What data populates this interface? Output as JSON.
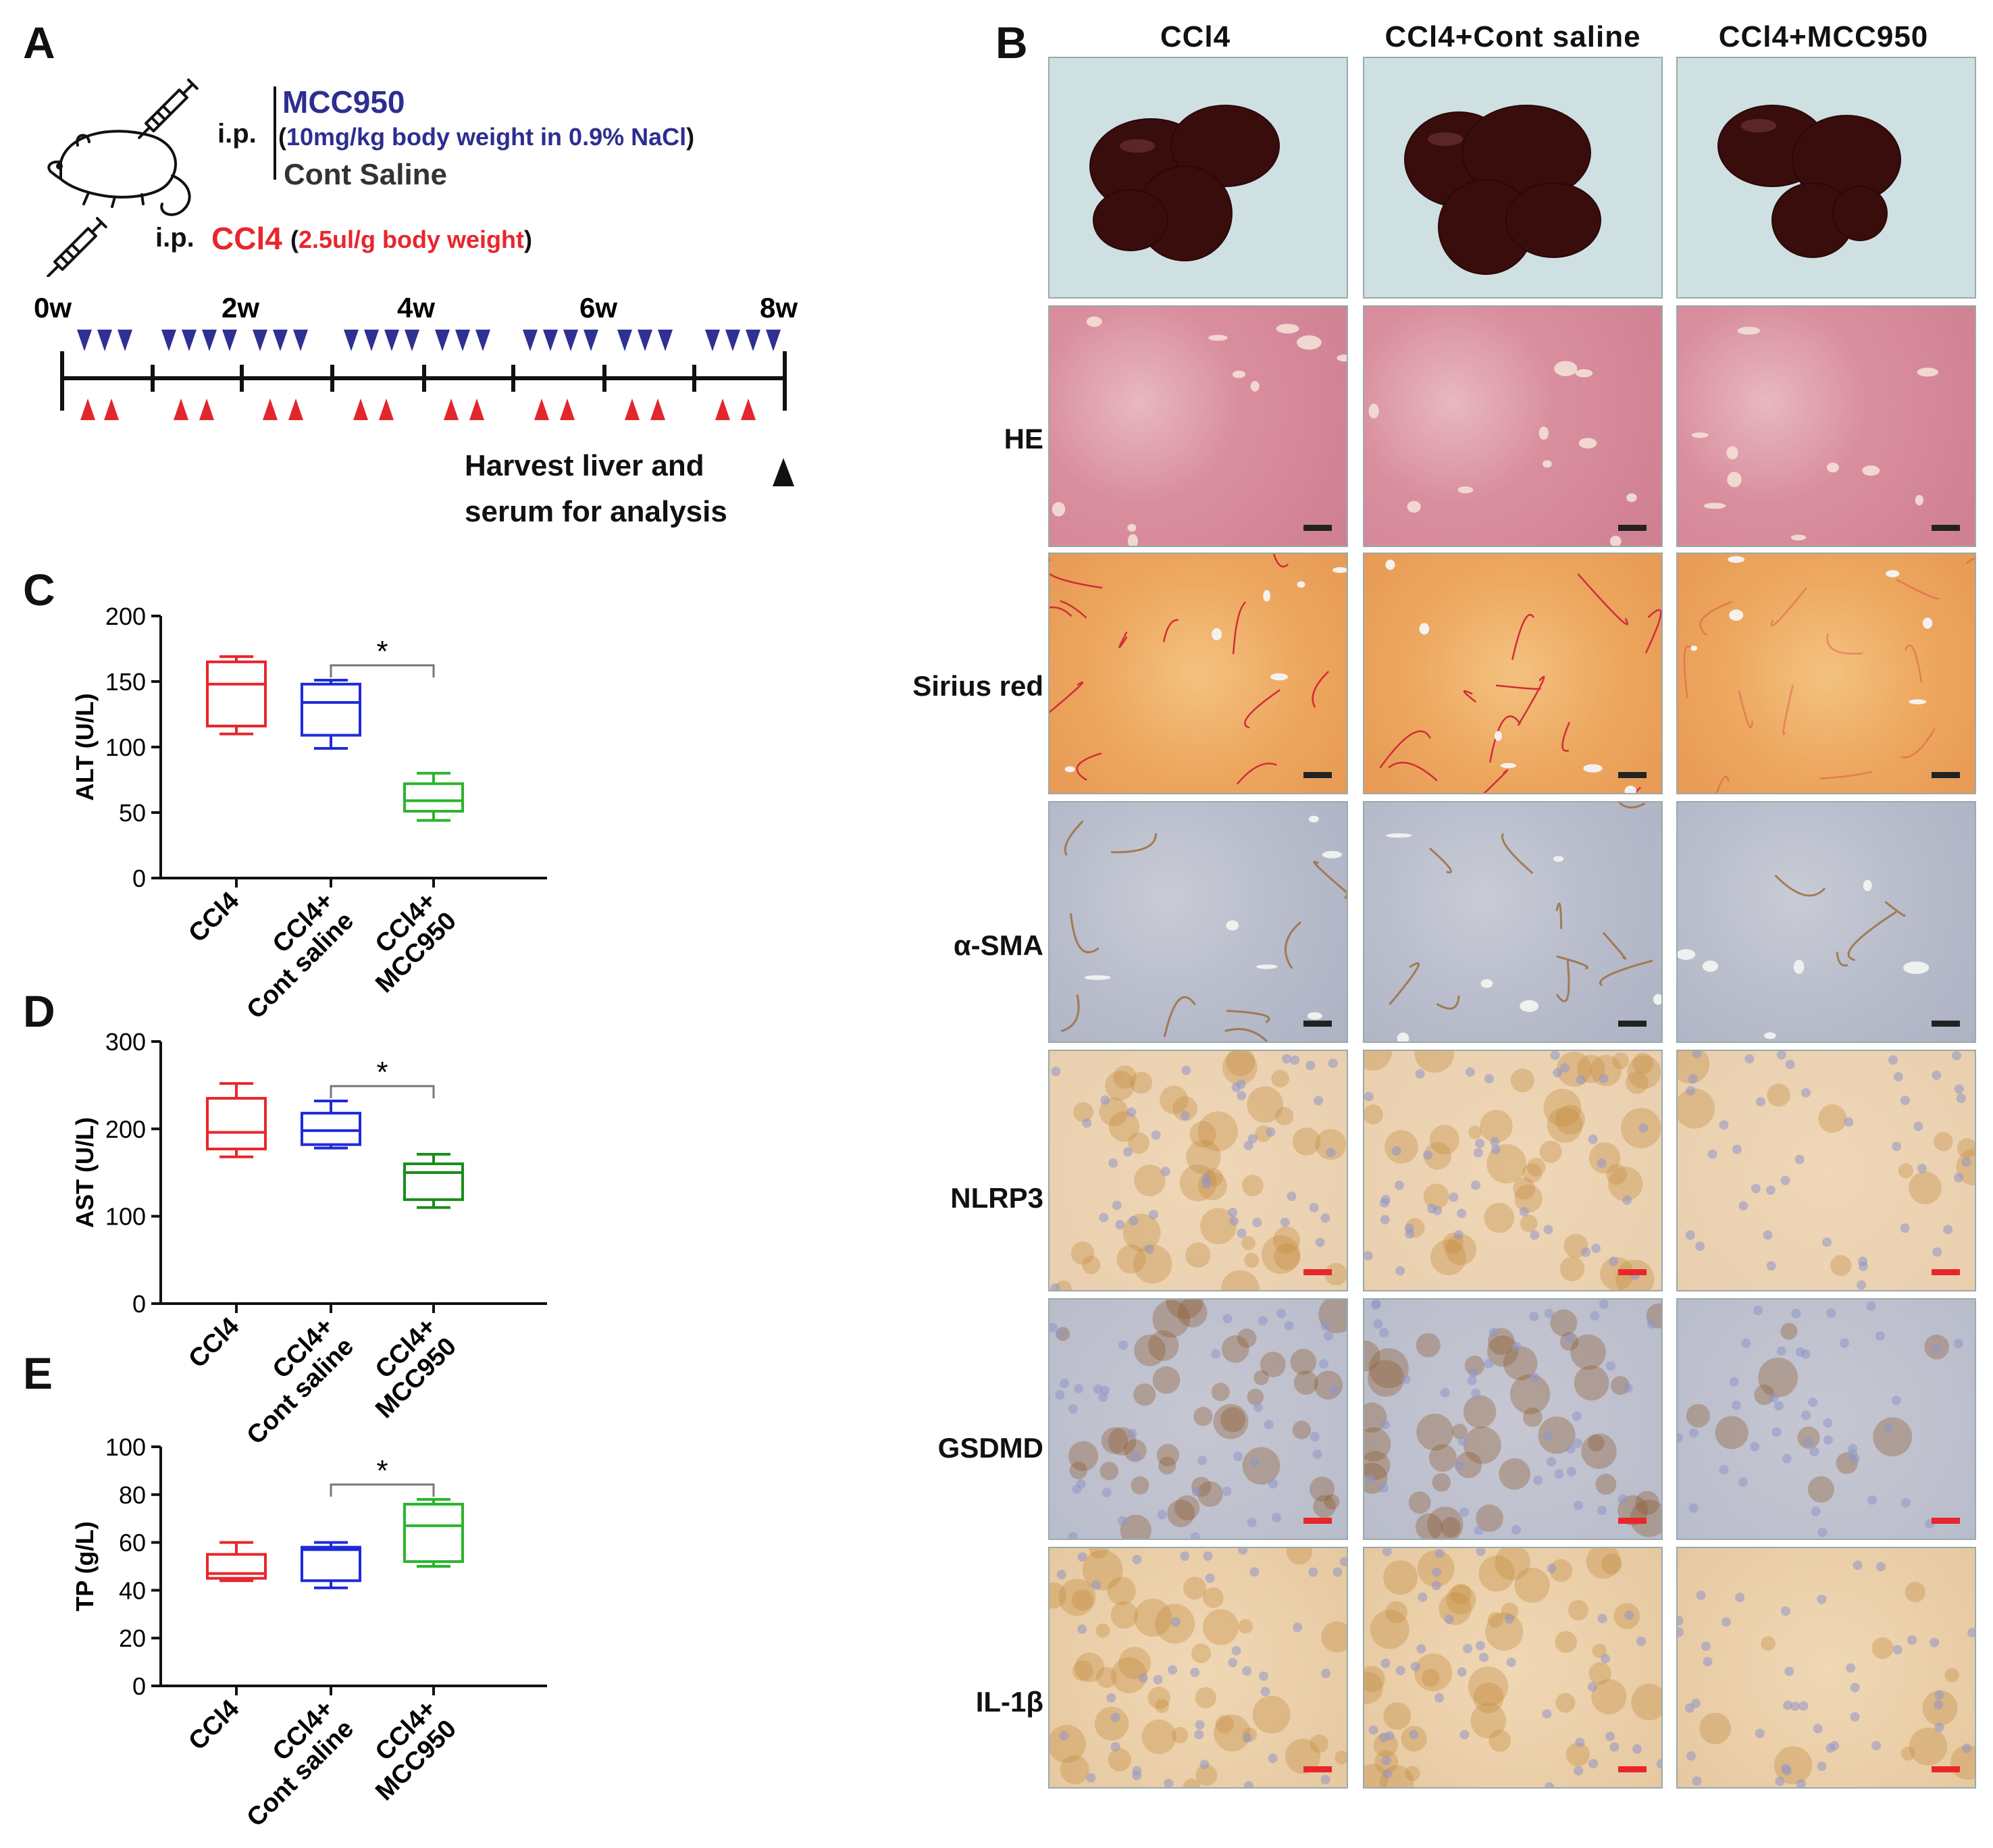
{
  "panels": {
    "a": "A",
    "b": "B",
    "c": "C",
    "d": "D",
    "e": "E"
  },
  "panelA": {
    "ip1": "i.p.",
    "mcc": "MCC950",
    "mcc_dose_open": "(",
    "mcc_dose": "10mg/kg body weight in 0.9% NaCl",
    "mcc_dose_close": ")",
    "cont": "Cont Saline",
    "ip2": "i.p.",
    "ccl4": "CCl4",
    "ccl4_dose_open": "(",
    "ccl4_dose": "2.5ul/g body weight",
    "ccl4_dose_close": ")",
    "weeks": [
      "0w",
      "2w",
      "4w",
      "6w",
      "8w"
    ],
    "harvest1": "Harvest liver and",
    "harvest2": "serum for analysis",
    "colors": {
      "mcc": "#2e2e8f",
      "ccl4": "#e8262c",
      "blue_tri": "#2e3192",
      "red_tri": "#e2262d"
    }
  },
  "panelB": {
    "columns": [
      "CCl4",
      "CCl4+Cont saline",
      "CCl4+MCC950"
    ],
    "rows": [
      "HE",
      "Sirius red",
      "α-SMA",
      "NLRP3",
      "GSDMD",
      "IL-1β"
    ]
  },
  "chart_data": [
    {
      "type": "box",
      "ylabel": "ALT (U/L)",
      "ylim": [
        0,
        200
      ],
      "yticks": [
        "0",
        "50",
        "100",
        "150",
        "200"
      ],
      "categories": [
        "CCl4",
        "CCl4+ Cont saline",
        "CCl4+ MCC950"
      ],
      "series": [
        {
          "min": 110,
          "q1": 116,
          "median": 148,
          "q3": 165,
          "max": 169,
          "color": "#e8262c"
        },
        {
          "min": 99,
          "q1": 109,
          "median": 134,
          "q3": 148,
          "max": 151,
          "color": "#1f2bd8"
        },
        {
          "min": 44,
          "q1": 51,
          "median": 59,
          "q3": 72,
          "max": 80,
          "color": "#2bb52b"
        }
      ],
      "significance": {
        "from": 1,
        "to": 2,
        "label": "*"
      }
    },
    {
      "type": "box",
      "ylabel": "AST (U/L)",
      "ylim": [
        0,
        300
      ],
      "yticks": [
        "0",
        "100",
        "200",
        "300"
      ],
      "categories": [
        "CCl4",
        "CCl4+ Cont saline",
        "CCl4+ MCC950"
      ],
      "series": [
        {
          "min": 168,
          "q1": 177,
          "median": 196,
          "q3": 235,
          "max": 252,
          "color": "#e8262c"
        },
        {
          "min": 178,
          "q1": 182,
          "median": 198,
          "q3": 218,
          "max": 232,
          "color": "#1f2bd8"
        },
        {
          "min": 110,
          "q1": 119,
          "median": 150,
          "q3": 160,
          "max": 171,
          "color": "#1a8c1a"
        }
      ],
      "significance": {
        "from": 1,
        "to": 2,
        "label": "*"
      }
    },
    {
      "type": "box",
      "ylabel": "TP (g/L)",
      "ylim": [
        0,
        100
      ],
      "yticks": [
        "0",
        "20",
        "40",
        "60",
        "80",
        "100"
      ],
      "categories": [
        "CCl4",
        "CCl4+ Cont saline",
        "CCl4+ MCC950"
      ],
      "series": [
        {
          "min": 44,
          "q1": 45,
          "median": 47,
          "q3": 55,
          "max": 60,
          "color": "#e8262c"
        },
        {
          "min": 41,
          "q1": 44,
          "median": 57,
          "q3": 58,
          "max": 60,
          "color": "#1f2bd8"
        },
        {
          "min": 50,
          "q1": 52,
          "median": 67,
          "q3": 76,
          "max": 78,
          "color": "#2bb52b"
        }
      ],
      "significance": {
        "from": 1,
        "to": 2,
        "label": "*"
      }
    }
  ]
}
